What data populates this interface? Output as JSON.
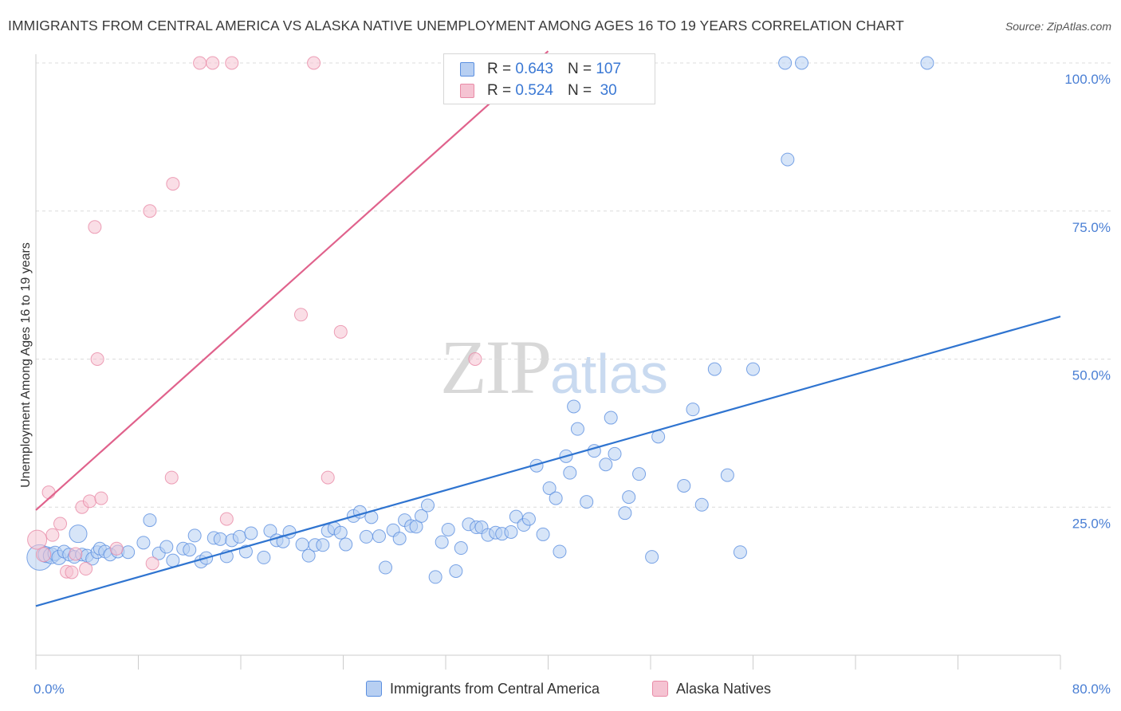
{
  "title": "IMMIGRANTS FROM CENTRAL AMERICA VS ALASKA NATIVE UNEMPLOYMENT AMONG AGES 16 TO 19 YEARS CORRELATION CHART",
  "source": "Source: ZipAtlas.com",
  "watermark": {
    "zip": "ZIP",
    "atlas": "atlas"
  },
  "colors": {
    "blue": "#5b8fe0",
    "blue_fill": "#b7cff2",
    "blue_line": "#2f74d0",
    "pink": "#e98aa6",
    "pink_fill": "#f5c3d2",
    "pink_line": "#e0628c",
    "tick_text": "#4a7fd4"
  },
  "legend": {
    "rows": [
      {
        "r_label": "R =",
        "r_value": "0.643",
        "n_label": "N =",
        "n_value": "107"
      },
      {
        "r_label": "R =",
        "r_value": "0.524",
        "n_label": "N =",
        "n_value": " 30"
      }
    ]
  },
  "bottom_legend": {
    "blue": "Immigrants from Central America",
    "pink": "Alaska Natives"
  },
  "chart_data": {
    "type": "scatter",
    "ylabel": "Unemployment Among Ages 16 to 19 years",
    "xlabel": "",
    "xlim": [
      0,
      80
    ],
    "ylim": [
      0,
      102
    ],
    "x_tick_labels": {
      "left": "0.0%",
      "right": "80.0%"
    },
    "y_ticks": [
      {
        "value": 25,
        "label": "25.0%"
      },
      {
        "value": 50,
        "label": "50.0%"
      },
      {
        "value": 75,
        "label": "75.0%"
      },
      {
        "value": 100,
        "label": "100.0%"
      }
    ],
    "grid": "horizontal dashed",
    "series": [
      {
        "name": "Immigrants from Central America",
        "color": "#5b8fe0",
        "r": 0.643,
        "n": 107,
        "trend": {
          "x": [
            0,
            80
          ],
          "y": [
            8.3,
            57.2
          ]
        },
        "points": [
          [
            0.3,
            16.5,
            16
          ],
          [
            0.8,
            17,
            10
          ],
          [
            1.2,
            16.8,
            10
          ],
          [
            1.5,
            17.2,
            9
          ],
          [
            1.8,
            16.5,
            9
          ],
          [
            2.2,
            17.5,
            8
          ],
          [
            2.6,
            17,
            8
          ],
          [
            3.0,
            16.6,
            8
          ],
          [
            3.3,
            20.5,
            11
          ],
          [
            3.6,
            17,
            8
          ],
          [
            4.0,
            16.8,
            8
          ],
          [
            4.4,
            16.3,
            8
          ],
          [
            4.8,
            17.4,
            8
          ],
          [
            5.0,
            18,
            8
          ],
          [
            5.4,
            17.5,
            8
          ],
          [
            5.8,
            17,
            8
          ],
          [
            6.4,
            17.5,
            8
          ],
          [
            7.2,
            17.4,
            8
          ],
          [
            8.4,
            19,
            8
          ],
          [
            8.9,
            22.8,
            8
          ],
          [
            9.6,
            17.2,
            8
          ],
          [
            10.2,
            18.3,
            8
          ],
          [
            10.7,
            16,
            8
          ],
          [
            11.5,
            18,
            8
          ],
          [
            12.0,
            17.8,
            8
          ],
          [
            12.4,
            20.2,
            8
          ],
          [
            12.9,
            15.8,
            8
          ],
          [
            13.3,
            16.4,
            8
          ],
          [
            13.9,
            19.8,
            8
          ],
          [
            14.4,
            19.6,
            8
          ],
          [
            14.9,
            16.7,
            8
          ],
          [
            15.3,
            19.4,
            8
          ],
          [
            15.9,
            20,
            8
          ],
          [
            16.4,
            17.5,
            8
          ],
          [
            16.8,
            20.6,
            8
          ],
          [
            17.8,
            16.5,
            8
          ],
          [
            18.3,
            21,
            8
          ],
          [
            18.8,
            19.4,
            8
          ],
          [
            19.3,
            19.2,
            8
          ],
          [
            19.8,
            20.8,
            8
          ],
          [
            20.8,
            18.7,
            8
          ],
          [
            21.3,
            16.8,
            8
          ],
          [
            21.8,
            18.6,
            8
          ],
          [
            22.4,
            18.6,
            8
          ],
          [
            22.8,
            21,
            8
          ],
          [
            23.3,
            21.4,
            8
          ],
          [
            23.8,
            20.7,
            8
          ],
          [
            24.2,
            18.7,
            8
          ],
          [
            24.8,
            23.5,
            8
          ],
          [
            25.3,
            24.2,
            8
          ],
          [
            25.8,
            20,
            8
          ],
          [
            26.2,
            23.3,
            8
          ],
          [
            26.8,
            20.1,
            8
          ],
          [
            27.3,
            14.8,
            8
          ],
          [
            27.9,
            21.1,
            8
          ],
          [
            28.4,
            19.7,
            8
          ],
          [
            28.8,
            22.8,
            8
          ],
          [
            29.3,
            21.8,
            8
          ],
          [
            29.7,
            21.7,
            8
          ],
          [
            30.1,
            23.5,
            8
          ],
          [
            30.6,
            25.3,
            8
          ],
          [
            31.2,
            13.2,
            8
          ],
          [
            31.7,
            19.1,
            8
          ],
          [
            32.2,
            21.2,
            8
          ],
          [
            32.8,
            14.2,
            8
          ],
          [
            33.2,
            18.1,
            8
          ],
          [
            33.8,
            22.1,
            8
          ],
          [
            34.4,
            21.6,
            8
          ],
          [
            34.8,
            21.6,
            8
          ],
          [
            35.3,
            20.3,
            8
          ],
          [
            35.9,
            20.7,
            8
          ],
          [
            36.4,
            20.5,
            8
          ],
          [
            37.1,
            20.8,
            8
          ],
          [
            37.5,
            23.4,
            8
          ],
          [
            38.1,
            22,
            8
          ],
          [
            38.5,
            23,
            8
          ],
          [
            39.1,
            32,
            8
          ],
          [
            39.6,
            20.4,
            8
          ],
          [
            40.1,
            28.2,
            8
          ],
          [
            40.6,
            26.5,
            8
          ],
          [
            40.9,
            17.5,
            8
          ],
          [
            41.4,
            33.6,
            8
          ],
          [
            41.7,
            30.8,
            8
          ],
          [
            42.3,
            38.2,
            8
          ],
          [
            42.0,
            42,
            8
          ],
          [
            43.0,
            25.9,
            8
          ],
          [
            43.6,
            34.5,
            8
          ],
          [
            44.5,
            32.2,
            8
          ],
          [
            44.9,
            40.1,
            8
          ],
          [
            45.2,
            34,
            8
          ],
          [
            46.0,
            24,
            8
          ],
          [
            46.3,
            26.7,
            8
          ],
          [
            47.1,
            30.6,
            8
          ],
          [
            48.1,
            16.6,
            8
          ],
          [
            48.6,
            36.9,
            8
          ],
          [
            50.6,
            28.6,
            8
          ],
          [
            51.3,
            41.5,
            8
          ],
          [
            52.0,
            25.4,
            8
          ],
          [
            53.0,
            48.3,
            8
          ],
          [
            54.0,
            30.4,
            8
          ],
          [
            55.0,
            17.4,
            8
          ],
          [
            56.0,
            48.3,
            8
          ],
          [
            58.5,
            100,
            8
          ],
          [
            58.7,
            83.7,
            8
          ],
          [
            59.8,
            100,
            8
          ],
          [
            69.6,
            100,
            8
          ]
        ]
      },
      {
        "name": "Alaska Natives",
        "color": "#e98aa6",
        "r": 0.524,
        "n": 30,
        "trend": {
          "x": [
            0,
            40
          ],
          "y": [
            24.5,
            102
          ]
        },
        "points": [
          [
            0.1,
            19.5,
            12
          ],
          [
            0.6,
            17,
            9
          ],
          [
            1.0,
            27.5,
            8
          ],
          [
            1.3,
            20.3,
            8
          ],
          [
            1.9,
            22.2,
            8
          ],
          [
            2.4,
            14.1,
            8
          ],
          [
            2.8,
            14,
            8
          ],
          [
            3.1,
            17.1,
            8
          ],
          [
            3.6,
            25,
            8
          ],
          [
            3.9,
            14.6,
            8
          ],
          [
            4.2,
            26,
            8
          ],
          [
            4.6,
            72.3,
            8
          ],
          [
            4.8,
            50,
            8
          ],
          [
            5.1,
            26.5,
            8
          ],
          [
            6.3,
            18,
            8
          ],
          [
            8.9,
            75,
            8
          ],
          [
            9.1,
            15.5,
            8
          ],
          [
            10.6,
            30,
            8
          ],
          [
            10.7,
            79.6,
            8
          ],
          [
            12.8,
            100,
            8
          ],
          [
            13.8,
            100,
            8
          ],
          [
            14.9,
            23,
            8
          ],
          [
            15.3,
            100,
            8
          ],
          [
            20.7,
            57.5,
            8
          ],
          [
            21.7,
            100,
            8
          ],
          [
            22.8,
            30,
            8
          ],
          [
            23.8,
            54.6,
            8
          ],
          [
            34.3,
            50,
            8
          ]
        ]
      }
    ]
  }
}
